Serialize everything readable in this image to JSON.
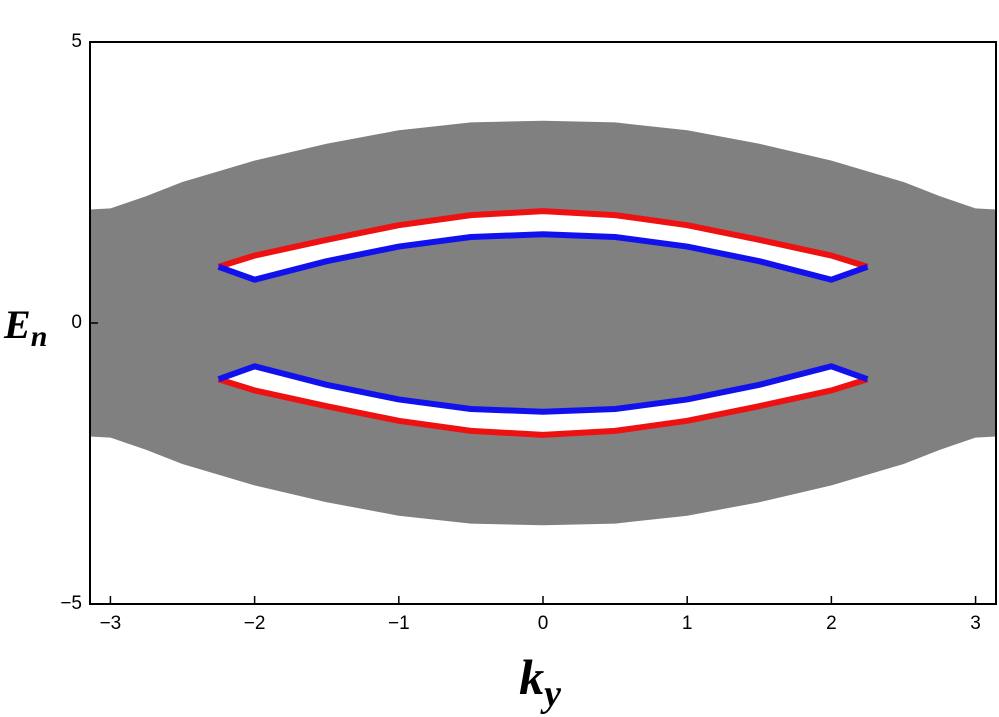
{
  "chart_data": {
    "type": "line",
    "xlabel": "k",
    "xlabel_subscript": "y",
    "ylabel": "E",
    "ylabel_subscript": "n",
    "xlim": [
      -3.1416,
      3.1416
    ],
    "ylim": [
      -5,
      5
    ],
    "xticks": [
      {
        "value": -3,
        "label": "−3"
      },
      {
        "value": -2,
        "label": "−2"
      },
      {
        "value": -1,
        "label": "−1"
      },
      0,
      1,
      2,
      3
    ],
    "yticks": [
      {
        "value": -5,
        "label": "−5"
      },
      0,
      5
    ],
    "series": [
      {
        "color": "#808080",
        "x": [
          -3.1416,
          -3,
          -2.75,
          -2.5,
          -2,
          -1.5,
          -1,
          -0.5,
          0,
          0.5,
          1,
          1.5,
          2,
          2.5,
          2.75,
          3,
          3.1416
        ],
        "values": [
          2.01,
          2.03,
          2.25,
          2.5,
          2.88,
          3.18,
          3.42,
          3.56,
          3.59,
          3.56,
          3.42,
          3.18,
          2.88,
          2.5,
          2.25,
          2.03,
          2.01
        ]
      },
      {
        "color": "#808080",
        "x": [
          -3.1416,
          -3,
          -2.75,
          -2.5,
          -2,
          -1.5,
          -1,
          -0.5,
          0,
          0.5,
          1,
          1.5,
          2,
          2.5,
          2.75,
          3,
          3.1416
        ],
        "values": [
          -2.01,
          -2.03,
          -2.25,
          -2.5,
          -2.88,
          -3.18,
          -3.42,
          -3.56,
          -3.59,
          -3.56,
          -3.42,
          -3.18,
          -2.88,
          -2.5,
          -2.25,
          -2.03,
          -2.01
        ]
      },
      {
        "color": "#ee1111",
        "x": [
          -2.25,
          -2,
          -1.5,
          -1,
          -0.5,
          0,
          0.5,
          1,
          1.5,
          2,
          2.25
        ],
        "values": [
          1.0,
          1.2,
          1.48,
          1.74,
          1.92,
          1.99,
          1.92,
          1.74,
          1.48,
          1.2,
          1.0
        ]
      },
      {
        "color": "#1111ee",
        "x": [
          -2.25,
          -2,
          -1.5,
          -1,
          -0.5,
          0,
          0.5,
          1,
          1.5,
          2,
          2.25
        ],
        "values": [
          1.0,
          0.77,
          1.1,
          1.36,
          1.53,
          1.58,
          1.53,
          1.36,
          1.1,
          0.77,
          1.0
        ]
      },
      {
        "color": "#ee1111",
        "x": [
          -2.25,
          -2,
          -1.5,
          -1,
          -0.5,
          0,
          0.5,
          1,
          1.5,
          2,
          2.25
        ],
        "values": [
          -1.0,
          -1.2,
          -1.48,
          -1.74,
          -1.92,
          -1.99,
          -1.92,
          -1.74,
          -1.48,
          -1.2,
          -1.0
        ]
      },
      {
        "color": "#1111ee",
        "x": [
          -2.25,
          -2,
          -1.5,
          -1,
          -0.5,
          0,
          0.5,
          1,
          1.5,
          2,
          2.25
        ],
        "values": [
          -1.0,
          -0.77,
          -1.1,
          -1.36,
          -1.53,
          -1.58,
          -1.53,
          -1.36,
          -1.1,
          -0.77,
          -1.0
        ]
      }
    ],
    "fills": [
      {
        "between": [
          0,
          1
        ],
        "color": "#808080"
      },
      {
        "between": [
          2,
          3
        ],
        "color": "#ffffff"
      },
      {
        "between": [
          4,
          5
        ],
        "color": "#ffffff"
      }
    ]
  }
}
